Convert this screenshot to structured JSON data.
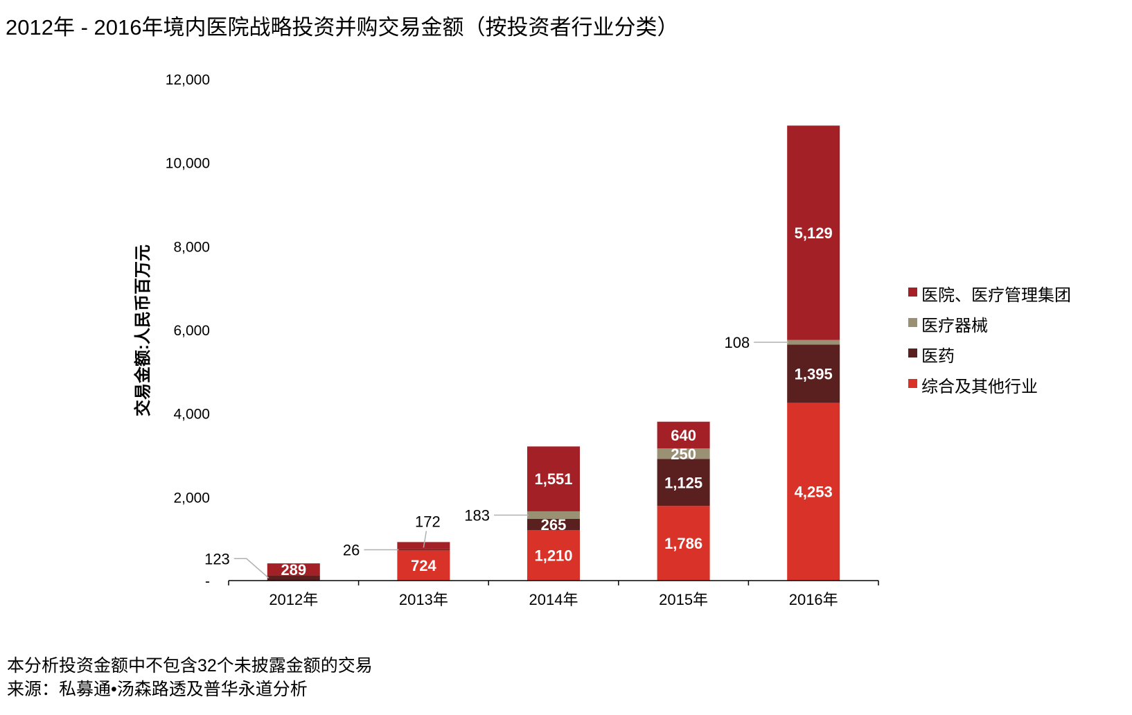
{
  "title": "2012年 - 2016年境内医院战略投资并购交易金额（按投资者行业分类）",
  "notes": {
    "line1": "本分析投资金额中不包含32个未披露金额的交易",
    "line2": "来源：私募通•汤森路透及普华永道分析"
  },
  "chart_data": {
    "type": "bar",
    "stacked": true,
    "title": "2012年 - 2016年境内医院战略投资并购交易金额（按投资者行业分类）",
    "xlabel": "",
    "ylabel": "交易金额:人民币百万元",
    "ylim": [
      0,
      12000
    ],
    "yticks": [
      0,
      2000,
      4000,
      6000,
      8000,
      10000,
      12000
    ],
    "ytick_labels": [
      "-",
      "2,000",
      "4,000",
      "6,000",
      "8,000",
      "10,000",
      "12,000"
    ],
    "categories": [
      "2012年",
      "2013年",
      "2014年",
      "2015年",
      "2016年"
    ],
    "series": [
      {
        "name": "综合及其他行业",
        "color": "#d93228",
        "values": [
          0,
          724,
          1210,
          1786,
          4253
        ]
      },
      {
        "name": "医药",
        "color": "#5a1f1f",
        "values": [
          123,
          26,
          265,
          1125,
          1395
        ]
      },
      {
        "name": "医疗器械",
        "color": "#9a9074",
        "values": [
          0,
          0,
          183,
          250,
          108
        ]
      },
      {
        "name": "医院、医疗管理集团",
        "color": "#a32026",
        "values": [
          289,
          172,
          1551,
          640,
          5129
        ]
      }
    ],
    "legend_order": [
      "医院、医疗管理集团",
      "医疗器械",
      "医药",
      "综合及其他行业"
    ],
    "legend_position": "right",
    "grid": false
  }
}
